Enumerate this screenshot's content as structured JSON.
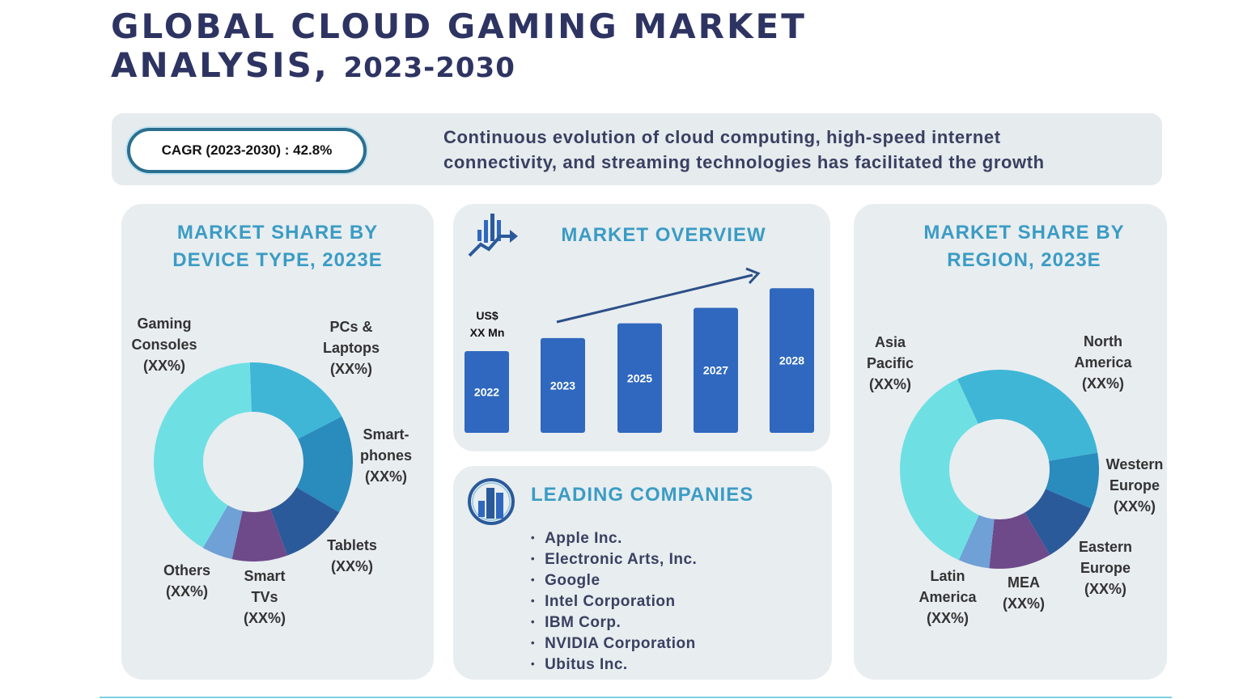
{
  "title": {
    "line1": "GLOBAL CLOUD GAMING MARKET",
    "line2_word": "ANALYSIS,",
    "line2_years": "2023-2030"
  },
  "banner": {
    "cagr": "CAGR (2023-2030) : 42.8%",
    "description": "Continuous evolution of cloud computing, high-speed internet\nconnectivity, and streaming technologies has facilitated the growth"
  },
  "colors": {
    "title": "#2e3462",
    "heading": "#3b9cc4",
    "bar": "#2f68be",
    "panel": "#e8edf0"
  },
  "chart_data": [
    {
      "type": "pie",
      "donut": true,
      "title": "MARKET SHARE BY\nDEVICE TYPE, 2023E",
      "slices": [
        {
          "label": "PCs &\nLaptops",
          "value_label": "(XX%)",
          "approx_share": 18,
          "color": "#3fb6d6"
        },
        {
          "label": "Smart-\nphones",
          "value_label": "(XX%)",
          "approx_share": 16,
          "color": "#2a8bbd"
        },
        {
          "label": "Tablets",
          "value_label": "(XX%)",
          "approx_share": 11,
          "color": "#2b5a9a"
        },
        {
          "label": "Smart\nTVs",
          "value_label": "(XX%)",
          "approx_share": 9,
          "color": "#6e4a8a"
        },
        {
          "label": "Others",
          "value_label": "(XX%)",
          "approx_share": 5,
          "color": "#6fa0d6"
        },
        {
          "label": "Gaming\nConsoles",
          "value_label": "(XX%)",
          "approx_share": 41,
          "color": "#6ee0e4"
        }
      ]
    },
    {
      "type": "bar",
      "title": "MARKET OVERVIEW",
      "value_label": "US$\nXX Mn",
      "categories": [
        "2022",
        "2023",
        "2025",
        "2027",
        "2028"
      ],
      "relative_values": [
        100,
        116,
        134,
        153,
        177
      ],
      "trend_arrow": "up"
    },
    {
      "type": "pie",
      "donut": true,
      "title": "MARKET SHARE BY\nREGION, 2023E",
      "slices": [
        {
          "label": "North\nAmerica",
          "value_label": "(XX%)",
          "approx_share": 29,
          "color": "#3fb6d6"
        },
        {
          "label": "Western\nEurope",
          "value_label": "(XX%)",
          "approx_share": 9,
          "color": "#2a8bbd"
        },
        {
          "label": "Eastern\nEurope",
          "value_label": "(XX%)",
          "approx_share": 10,
          "color": "#2b5a9a"
        },
        {
          "label": "MEA",
          "value_label": "(XX%)",
          "approx_share": 10,
          "color": "#6e4a8a"
        },
        {
          "label": "Latin\nAmerica",
          "value_label": "(XX%)",
          "approx_share": 5,
          "color": "#6fa0d6"
        },
        {
          "label": "Asia\nPacific",
          "value_label": "(XX%)",
          "approx_share": 36,
          "color": "#6ee0e4"
        }
      ]
    }
  ],
  "companies": {
    "title": "LEADING COMPANIES",
    "items": [
      "Apple Inc.",
      "Electronic Arts, Inc.",
      "Google",
      "Intel Corporation",
      "IBM Corp.",
      "NVIDIA Corporation",
      "Ubitus Inc."
    ]
  },
  "icons": {
    "overview": "bar-chart-growth-icon",
    "companies": "buildings-circle-icon"
  }
}
